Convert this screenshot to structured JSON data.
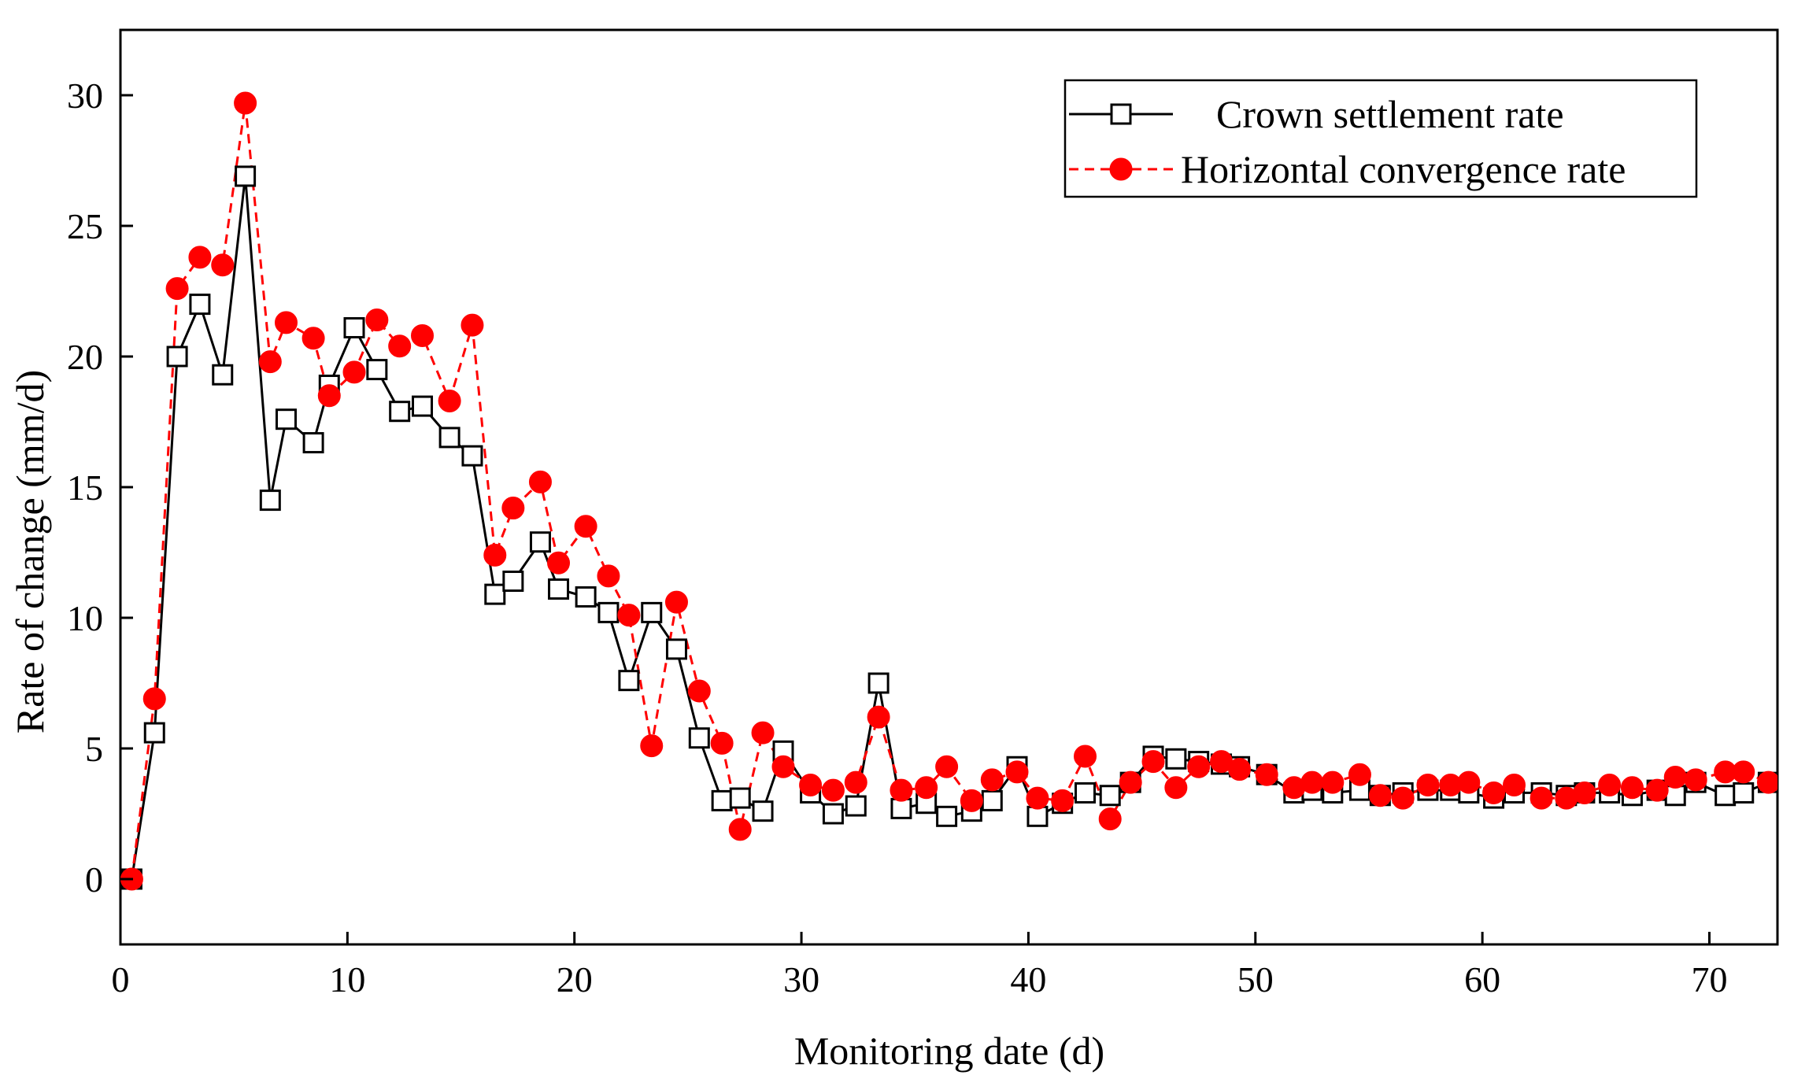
{
  "chart_data": {
    "type": "line",
    "xlabel": "Monitoring date (d)",
    "ylabel": "Rate of change (mm/d)",
    "xlim": [
      0,
      73
    ],
    "ylim": [
      -2.5,
      32.5
    ],
    "xticks": [
      0,
      10,
      20,
      30,
      40,
      50,
      60,
      70
    ],
    "yticks": [
      0,
      5,
      10,
      15,
      20,
      25,
      30
    ],
    "legend_position": "top-right",
    "grid": false,
    "series": [
      {
        "name": "Crown settlement rate",
        "color": "#000000",
        "line_style": "solid",
        "marker": "open-square",
        "x": [
          0.5,
          1.5,
          2.5,
          3.5,
          4.5,
          5.5,
          6.6,
          7.3,
          8.5,
          9.2,
          10.3,
          11.3,
          12.3,
          13.3,
          14.5,
          15.5,
          16.5,
          17.3,
          18.5,
          19.3,
          20.5,
          21.5,
          22.4,
          23.4,
          24.5,
          25.5,
          26.5,
          27.3,
          28.3,
          29.2,
          30.4,
          31.4,
          32.4,
          33.4,
          34.4,
          35.5,
          36.4,
          37.5,
          38.4,
          39.5,
          40.4,
          41.5,
          42.5,
          43.6,
          44.5,
          45.5,
          46.5,
          47.5,
          48.5,
          49.3,
          50.5,
          51.7,
          52.5,
          53.4,
          54.6,
          55.5,
          56.5,
          57.6,
          58.6,
          59.4,
          60.5,
          61.4,
          62.6,
          63.7,
          64.5,
          65.6,
          66.6,
          67.7,
          68.5,
          69.4,
          70.7,
          71.5,
          72.6
        ],
        "y": [
          0,
          5.6,
          20,
          22,
          19.3,
          26.9,
          14.5,
          17.6,
          16.7,
          18.9,
          21.1,
          19.5,
          17.9,
          18.1,
          16.9,
          16.2,
          10.9,
          11.4,
          12.9,
          11.1,
          10.8,
          10.2,
          7.6,
          10.2,
          8.8,
          5.4,
          3.0,
          3.1,
          2.6,
          4.9,
          3.3,
          2.5,
          2.8,
          7.5,
          2.7,
          2.9,
          2.4,
          2.6,
          3.0,
          4.3,
          2.4,
          2.9,
          3.3,
          3.2,
          3.7,
          4.7,
          4.6,
          4.5,
          4.4,
          4.3,
          4.0,
          3.3,
          3.4,
          3.3,
          3.4,
          3.2,
          3.3,
          3.4,
          3.4,
          3.3,
          3.1,
          3.3,
          3.3,
          3.2,
          3.3,
          3.3,
          3.2,
          3.4,
          3.2,
          3.7,
          3.2,
          3.3,
          3.7
        ]
      },
      {
        "name": "Horizontal convergence rate",
        "color": "#ff0000",
        "line_style": "dashed",
        "marker": "filled-circle",
        "x": [
          0.5,
          1.5,
          2.5,
          3.5,
          4.5,
          5.5,
          6.6,
          7.3,
          8.5,
          9.2,
          10.3,
          11.3,
          12.3,
          13.3,
          14.5,
          15.5,
          16.5,
          17.3,
          18.5,
          19.3,
          20.5,
          21.5,
          22.4,
          23.4,
          24.5,
          25.5,
          26.5,
          27.3,
          28.3,
          29.2,
          30.4,
          31.4,
          32.4,
          33.4,
          34.4,
          35.5,
          36.4,
          37.5,
          38.4,
          39.5,
          40.4,
          41.5,
          42.5,
          43.6,
          44.5,
          45.5,
          46.5,
          47.5,
          48.5,
          49.3,
          50.5,
          51.7,
          52.5,
          53.4,
          54.6,
          55.5,
          56.5,
          57.6,
          58.6,
          59.4,
          60.5,
          61.4,
          62.6,
          63.7,
          64.5,
          65.6,
          66.6,
          67.7,
          68.5,
          69.4,
          70.7,
          71.5,
          72.6
        ],
        "y": [
          0,
          6.9,
          22.6,
          23.8,
          23.5,
          29.7,
          19.8,
          21.3,
          20.7,
          18.5,
          19.4,
          21.4,
          20.4,
          20.8,
          18.3,
          21.2,
          12.4,
          14.2,
          15.2,
          12.1,
          13.5,
          11.6,
          10.1,
          5.1,
          10.6,
          7.2,
          5.2,
          1.9,
          5.6,
          4.3,
          3.6,
          3.4,
          3.7,
          6.2,
          3.4,
          3.5,
          4.3,
          3.0,
          3.8,
          4.1,
          3.1,
          3.0,
          4.7,
          2.3,
          3.7,
          4.5,
          3.5,
          4.3,
          4.5,
          4.2,
          4.0,
          3.5,
          3.7,
          3.7,
          4.0,
          3.2,
          3.1,
          3.6,
          3.6,
          3.7,
          3.3,
          3.6,
          3.1,
          3.1,
          3.3,
          3.6,
          3.5,
          3.4,
          3.9,
          3.8,
          4.1,
          4.1,
          3.7
        ]
      }
    ]
  }
}
